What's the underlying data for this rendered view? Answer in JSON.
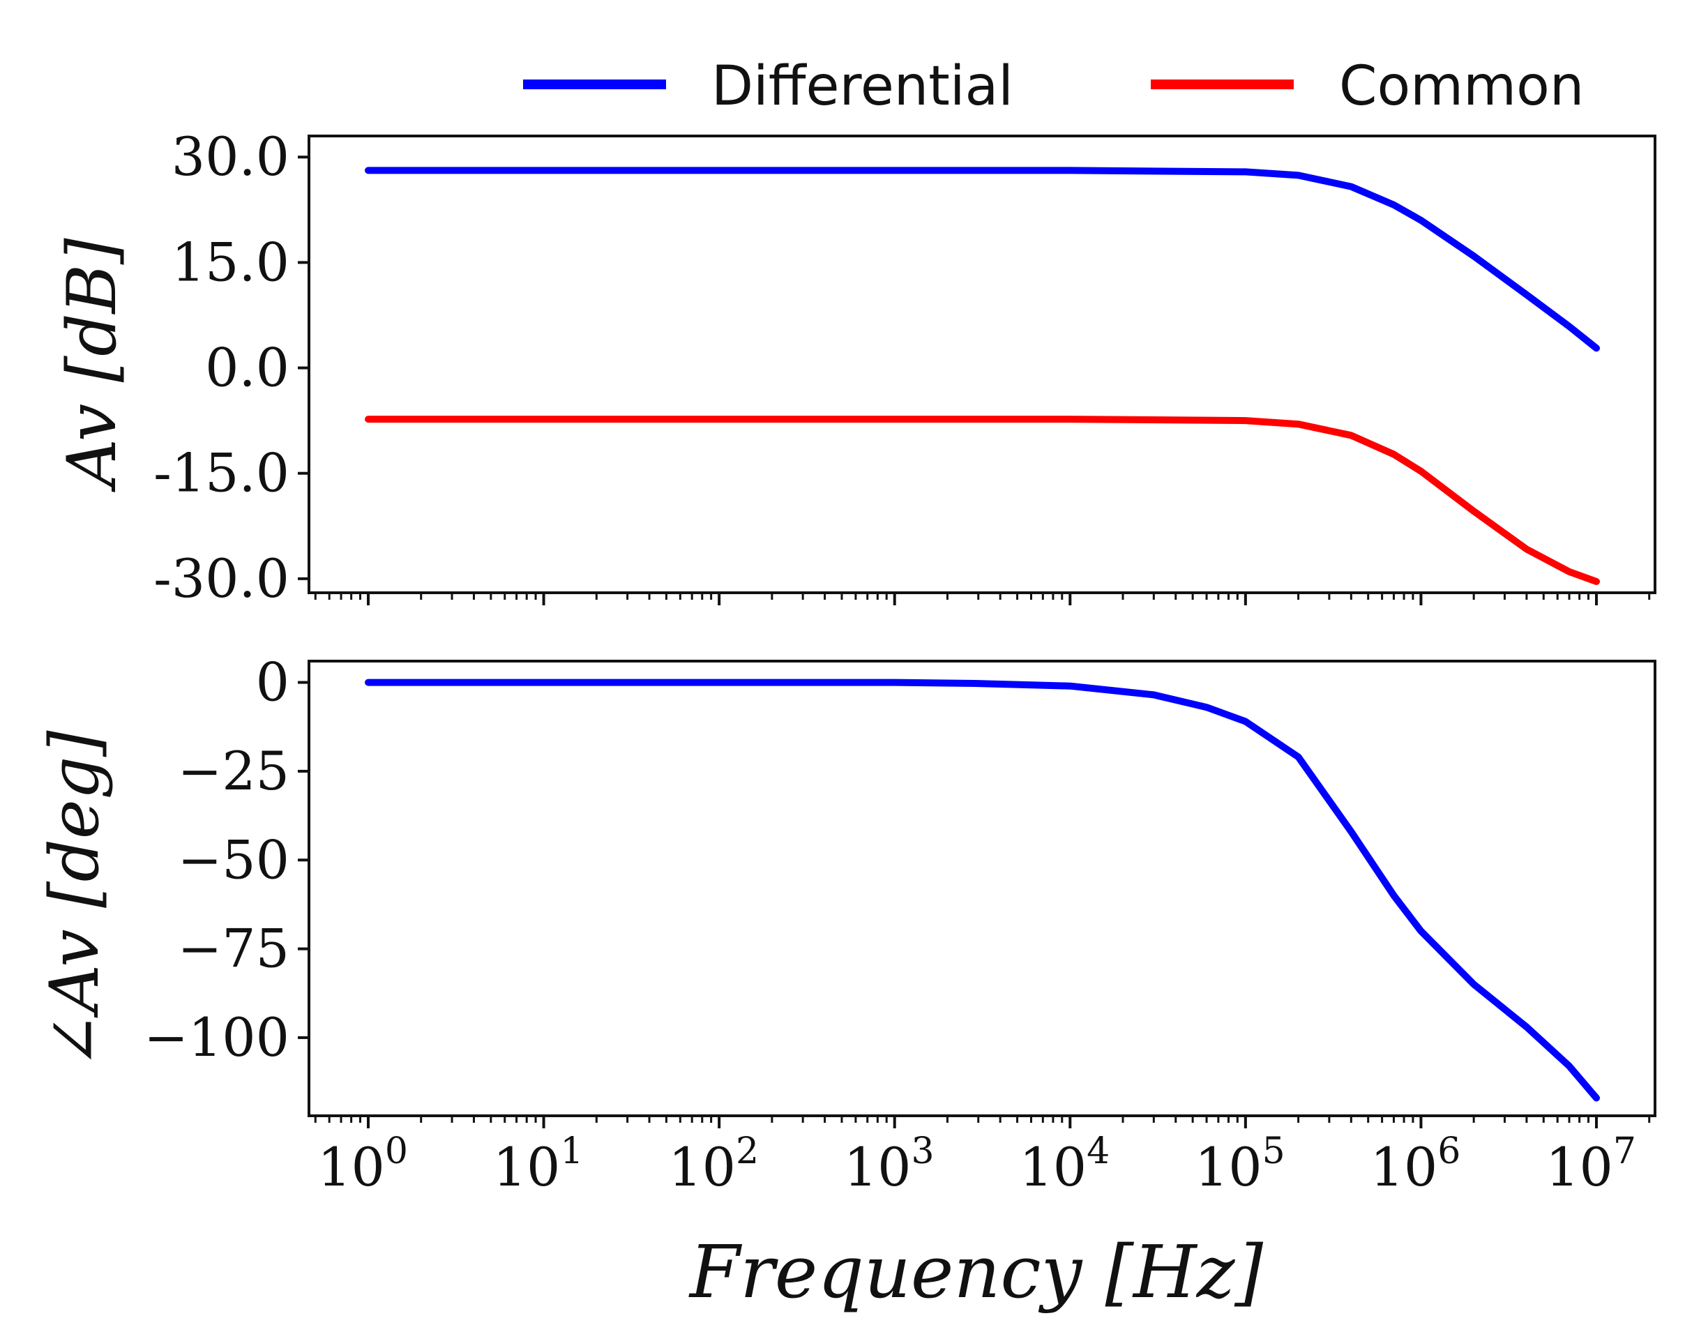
{
  "legend": {
    "entries": [
      {
        "label": "Differential",
        "color": "#0000ff"
      },
      {
        "label": "Common",
        "color": "#ff0000"
      }
    ]
  },
  "chart_data": [
    {
      "type": "line",
      "title": "",
      "xlabel": "Frequency [Hz]",
      "ylabel": "Av [dB]",
      "xscale": "log",
      "xlim": [
        1,
        10000000
      ],
      "ylim": [
        -32,
        33
      ],
      "yticks": [
        30,
        15,
        0,
        -15,
        -30
      ],
      "ytick_labels": [
        "30.0",
        "15.0",
        "0.0",
        "-15.0",
        "-30.0"
      ],
      "series": [
        {
          "name": "Differential",
          "color": "#0000ff",
          "x": [
            1,
            10,
            100,
            1000,
            10000,
            100000,
            200000,
            400000,
            700000,
            1000000,
            2000000,
            4000000,
            7000000,
            10000000
          ],
          "y": [
            28.1,
            28.1,
            28.1,
            28.1,
            28.1,
            27.9,
            27.4,
            25.8,
            23.2,
            21.0,
            15.9,
            10.4,
            5.9,
            2.8
          ]
        },
        {
          "name": "Common",
          "color": "#ff0000",
          "x": [
            1,
            10,
            100,
            1000,
            10000,
            100000,
            200000,
            400000,
            700000,
            1000000,
            2000000,
            4000000,
            7000000,
            10000000
          ],
          "y": [
            -7.3,
            -7.3,
            -7.3,
            -7.3,
            -7.3,
            -7.5,
            -8.0,
            -9.6,
            -12.3,
            -14.7,
            -20.4,
            -25.8,
            -29.0,
            -30.4
          ]
        }
      ]
    },
    {
      "type": "line",
      "title": "",
      "xlabel": "Frequency [Hz]",
      "ylabel": "∠Av [deg]",
      "xscale": "log",
      "xlim": [
        1,
        10000000
      ],
      "ylim": [
        -122,
        6
      ],
      "yticks": [
        0,
        -25,
        -50,
        -75,
        -100
      ],
      "ytick_labels": [
        "0",
        "−25",
        "−50",
        "−75",
        "−100"
      ],
      "xticks": [
        1,
        10,
        100,
        1000,
        10000,
        100000,
        1000000,
        10000000
      ],
      "xtick_labels": [
        {
          "base": "10",
          "exp": "0"
        },
        {
          "base": "10",
          "exp": "1"
        },
        {
          "base": "10",
          "exp": "2"
        },
        {
          "base": "10",
          "exp": "3"
        },
        {
          "base": "10",
          "exp": "4"
        },
        {
          "base": "10",
          "exp": "5"
        },
        {
          "base": "10",
          "exp": "6"
        },
        {
          "base": "10",
          "exp": "7"
        }
      ],
      "series": [
        {
          "name": "Differential",
          "color": "#0000ff",
          "x": [
            1,
            10,
            100,
            1000,
            3000,
            10000,
            30000,
            60000,
            100000,
            200000,
            400000,
            700000,
            1000000,
            2000000,
            4000000,
            7000000,
            10000000
          ],
          "y": [
            0,
            0,
            0,
            0,
            -0.3,
            -1,
            -3.5,
            -7,
            -11,
            -21,
            -42,
            -60,
            -70,
            -85,
            -97,
            -108,
            -117
          ]
        }
      ]
    }
  ]
}
